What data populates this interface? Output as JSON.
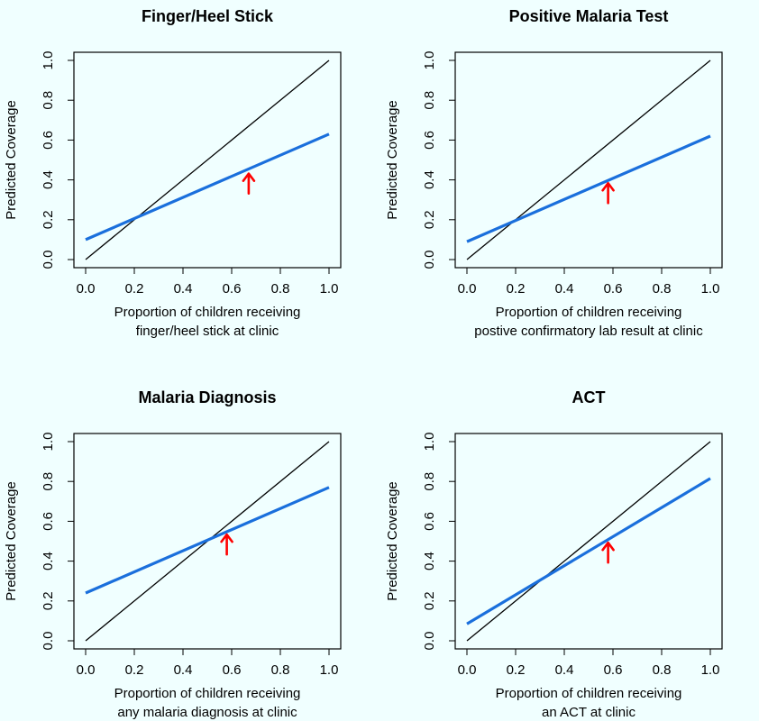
{
  "chart_data": [
    {
      "type": "line",
      "title": "Finger/Heel Stick",
      "xlabel": [
        "Proportion of children receiving",
        "finger/heel stick at clinic"
      ],
      "ylabel": "Predicted Coverage",
      "xlim": [
        0,
        1
      ],
      "ylim": [
        0,
        1
      ],
      "xticks": [
        "0.0",
        "0.2",
        "0.4",
        "0.6",
        "0.8",
        "1.0"
      ],
      "yticks": [
        "0.0",
        "0.2",
        "0.4",
        "0.6",
        "0.8",
        "1.0"
      ],
      "series": [
        {
          "x": [
            0,
            1
          ],
          "y": [
            0,
            1
          ],
          "color": "#000000"
        },
        {
          "x": [
            0,
            1
          ],
          "y": [
            0.1,
            0.63
          ],
          "color": "#1a6fdc"
        }
      ],
      "annotation": {
        "type": "arrow",
        "x": 0.67,
        "y": 0.445,
        "color": "#ff0000"
      },
      "grid": false
    },
    {
      "type": "line",
      "title": "Positive Malaria Test",
      "xlabel": [
        "Proportion of children receiving",
        "postive confirmatory lab result at clinic"
      ],
      "ylabel": "Predicted Coverage",
      "xlim": [
        0,
        1
      ],
      "ylim": [
        0,
        1
      ],
      "xticks": [
        "0.0",
        "0.2",
        "0.4",
        "0.6",
        "0.8",
        "1.0"
      ],
      "yticks": [
        "0.0",
        "0.2",
        "0.4",
        "0.6",
        "0.8",
        "1.0"
      ],
      "series": [
        {
          "x": [
            0,
            1
          ],
          "y": [
            0,
            1
          ],
          "color": "#000000"
        },
        {
          "x": [
            0,
            1
          ],
          "y": [
            0.09,
            0.62
          ],
          "color": "#1a6fdc"
        }
      ],
      "annotation": {
        "type": "arrow",
        "x": 0.58,
        "y": 0.397,
        "color": "#ff0000"
      },
      "grid": false
    },
    {
      "type": "line",
      "title": "Malaria Diagnosis",
      "xlabel": [
        "Proportion of children receiving",
        "any malaria diagnosis at clinic"
      ],
      "ylabel": "Predicted Coverage",
      "xlim": [
        0,
        1
      ],
      "ylim": [
        0,
        1
      ],
      "xticks": [
        "0.0",
        "0.2",
        "0.4",
        "0.6",
        "0.8",
        "1.0"
      ],
      "yticks": [
        "0.0",
        "0.2",
        "0.4",
        "0.6",
        "0.8",
        "1.0"
      ],
      "series": [
        {
          "x": [
            0,
            1
          ],
          "y": [
            0,
            1
          ],
          "color": "#000000"
        },
        {
          "x": [
            0,
            1
          ],
          "y": [
            0.24,
            0.77
          ],
          "color": "#1a6fdc"
        }
      ],
      "annotation": {
        "type": "arrow",
        "x": 0.58,
        "y": 0.547,
        "color": "#ff0000"
      },
      "grid": false
    },
    {
      "type": "line",
      "title": "ACT",
      "xlabel": [
        "Proportion of children receiving",
        "an ACT at clinic"
      ],
      "ylabel": "Predicted Coverage",
      "xlim": [
        0,
        1
      ],
      "ylim": [
        0,
        1
      ],
      "xticks": [
        "0.0",
        "0.2",
        "0.4",
        "0.6",
        "0.8",
        "1.0"
      ],
      "yticks": [
        "0.0",
        "0.2",
        "0.4",
        "0.6",
        "0.8",
        "1.0"
      ],
      "series": [
        {
          "x": [
            0,
            1
          ],
          "y": [
            0,
            1
          ],
          "color": "#000000"
        },
        {
          "x": [
            0,
            1
          ],
          "y": [
            0.085,
            0.815
          ],
          "color": "#1a6fdc"
        }
      ],
      "annotation": {
        "type": "arrow",
        "x": 0.58,
        "y": 0.506,
        "color": "#ff0000"
      },
      "grid": false
    }
  ]
}
